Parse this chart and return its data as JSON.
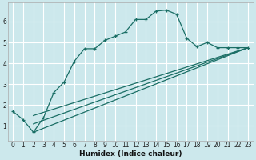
{
  "xlabel": "Humidex (Indice chaleur)",
  "bg_color": "#cce8ec",
  "grid_color": "#ffffff",
  "line_color": "#1a6e65",
  "xlim": [
    -0.5,
    23.5
  ],
  "ylim": [
    0.3,
    6.9
  ],
  "xticks": [
    0,
    1,
    2,
    3,
    4,
    5,
    6,
    7,
    8,
    9,
    10,
    11,
    12,
    13,
    14,
    15,
    16,
    17,
    18,
    19,
    20,
    21,
    22,
    23
  ],
  "yticks": [
    1,
    2,
    3,
    4,
    5,
    6
  ],
  "series1_x": [
    0,
    1,
    2,
    3,
    4,
    5,
    6,
    7,
    8,
    9,
    10,
    11,
    12,
    13,
    14,
    15,
    16,
    17,
    18,
    19,
    20,
    21,
    22,
    23
  ],
  "series1_y": [
    1.7,
    1.3,
    0.7,
    1.4,
    2.6,
    3.1,
    4.1,
    4.7,
    4.7,
    5.1,
    5.3,
    5.5,
    6.1,
    6.1,
    6.5,
    6.55,
    6.35,
    5.2,
    4.8,
    5.0,
    4.75,
    4.75,
    4.75,
    4.75
  ],
  "series2_x": [
    2,
    23
  ],
  "series2_y": [
    0.7,
    4.75
  ],
  "series3_x": [
    2,
    23
  ],
  "series3_y": [
    1.1,
    4.75
  ],
  "series4_x": [
    2,
    23
  ],
  "series4_y": [
    1.5,
    4.75
  ]
}
